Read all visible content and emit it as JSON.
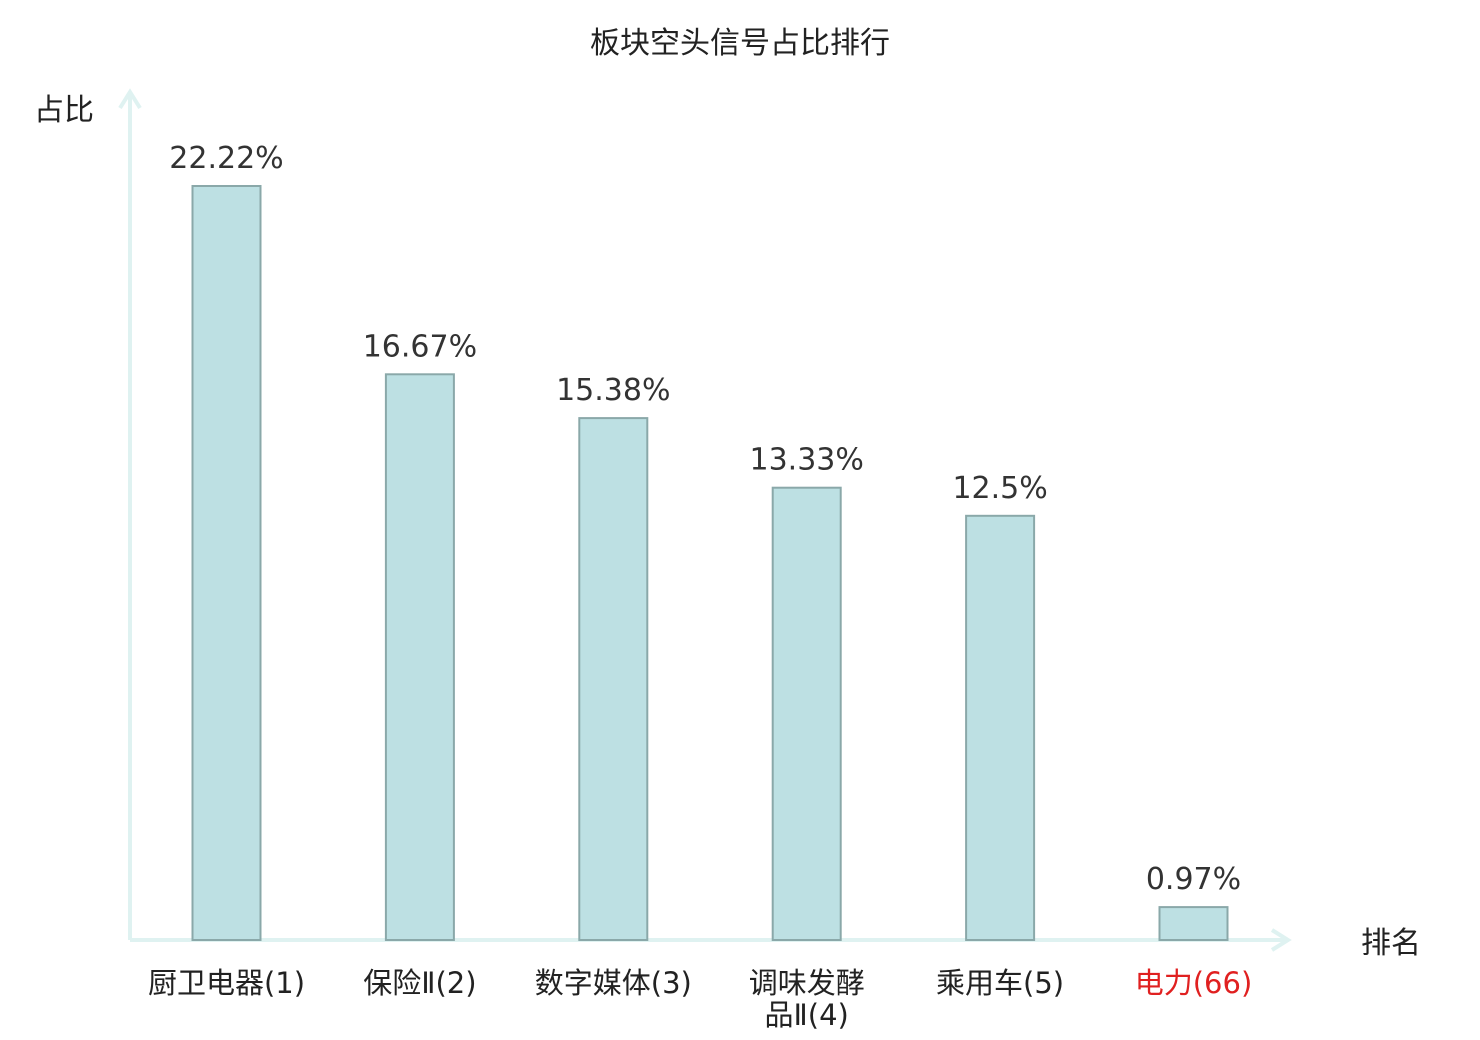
{
  "chart_data": {
    "type": "bar",
    "title": "板块空头信号占比排行",
    "ylabel": "占比",
    "xlabel": "排名",
    "ylim": [
      0,
      24.5
    ],
    "grid": false,
    "legend": "none",
    "categories": [
      {
        "name": "厨卫电器",
        "rank": "(1)",
        "lines": [
          "厨卫电器(1)"
        ],
        "highlight": false
      },
      {
        "name": "保险Ⅱ",
        "rank": "(2)",
        "lines": [
          "保险Ⅱ(2)"
        ],
        "highlight": false
      },
      {
        "name": "数字媒体",
        "rank": "(3)",
        "lines": [
          "数字媒体(3)"
        ],
        "highlight": false
      },
      {
        "name": "调味发酵品Ⅱ",
        "rank": "(4)",
        "lines": [
          "调味发酵",
          "品Ⅱ(4)"
        ],
        "highlight": false
      },
      {
        "name": "乘用车",
        "rank": "(5)",
        "lines": [
          "乘用车(5)"
        ],
        "highlight": false
      },
      {
        "name": "电力",
        "rank": "(66)",
        "lines": [
          "电力(66)"
        ],
        "highlight": true
      }
    ],
    "values": [
      22.22,
      16.67,
      15.38,
      13.33,
      12.5,
      0.97
    ],
    "value_labels": [
      "22.22%",
      "16.67%",
      "15.38%",
      "13.33%",
      "12.5%",
      "0.97%"
    ],
    "colors": {
      "bar_fill": "#bde0e3",
      "bar_stroke": "#8aa8a9",
      "axis": "#dff2f1",
      "highlight": "#e02020",
      "text": "#222222"
    }
  }
}
